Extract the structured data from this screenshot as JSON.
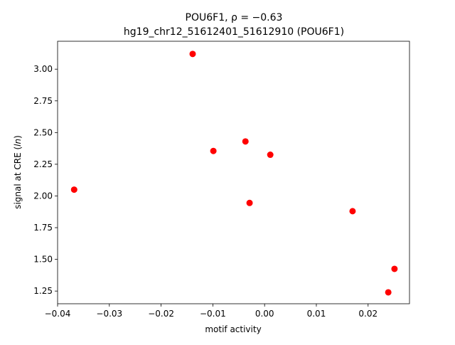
{
  "chart_data": {
    "type": "scatter",
    "title_line1": "POU6F1, ρ = −0.63",
    "title_line2": "hg19_chr12_51612401_51612910 (POU6F1)",
    "xlabel": "motif activity",
    "ylabel_prefix": "signal at CRE (",
    "ylabel_unit": "ln",
    "ylabel_suffix": ")",
    "xlim": [
      -0.04,
      0.028
    ],
    "ylim": [
      1.15,
      3.22
    ],
    "x_ticks": [
      -0.04,
      -0.03,
      -0.02,
      -0.01,
      0.0,
      0.01,
      0.02
    ],
    "x_tick_labels": [
      "−0.04",
      "−0.03",
      "−0.02",
      "−0.01",
      "0.00",
      "0.01",
      "0.02"
    ],
    "y_ticks": [
      1.25,
      1.5,
      1.75,
      2.0,
      2.25,
      2.5,
      2.75,
      3.0
    ],
    "y_tick_labels": [
      "1.25",
      "1.50",
      "1.75",
      "2.00",
      "2.25",
      "2.50",
      "2.75",
      "3.00"
    ],
    "marker_color": "#ff0000",
    "grid": false,
    "points": [
      {
        "x": -0.0368,
        "y": 2.05
      },
      {
        "x": -0.0139,
        "y": 3.12
      },
      {
        "x": -0.0099,
        "y": 2.355
      },
      {
        "x": -0.0037,
        "y": 2.43
      },
      {
        "x": -0.0029,
        "y": 1.945
      },
      {
        "x": 0.0011,
        "y": 2.325
      },
      {
        "x": 0.017,
        "y": 1.88
      },
      {
        "x": 0.0239,
        "y": 1.24
      },
      {
        "x": 0.0251,
        "y": 1.425
      }
    ]
  }
}
